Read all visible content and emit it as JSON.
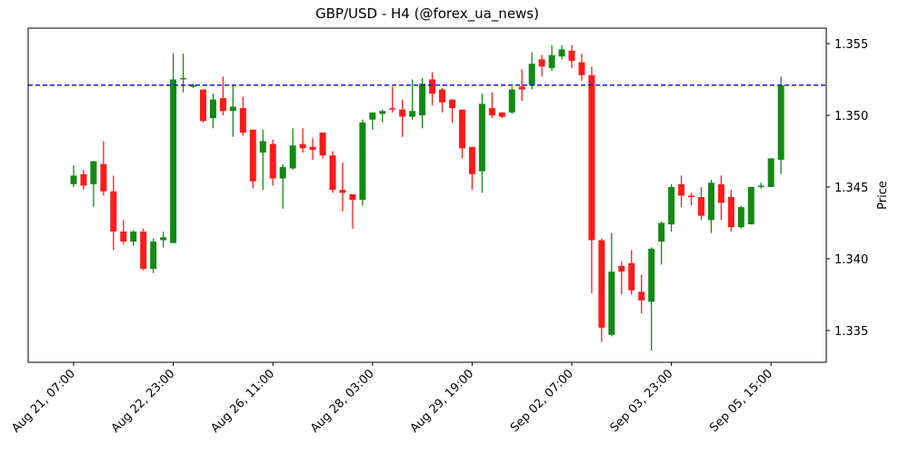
{
  "chart_data": {
    "type": "candlestick",
    "title": "GBP/USD - H4 (@forex_ua_news)",
    "xlabel": "",
    "ylabel": "Price",
    "ylim": [
      1.3326,
      1.3562
    ],
    "y_ticks": [
      "1.335",
      "1.340",
      "1.345",
      "1.350",
      "1.355"
    ],
    "x_ticks": [
      {
        "label": "Aug 21, 07:00",
        "index": 0
      },
      {
        "label": "Aug 22, 23:00",
        "index": 10
      },
      {
        "label": "Aug 26, 11:00",
        "index": 20
      },
      {
        "label": "Aug 28, 03:00",
        "index": 30
      },
      {
        "label": "Aug 29, 19:00",
        "index": 40
      },
      {
        "label": "Sep 02, 07:00",
        "index": 50
      },
      {
        "label": "Sep 03, 23:00",
        "index": 60
      },
      {
        "label": "Sep 05, 15:00",
        "index": 70
      }
    ],
    "grid": false,
    "y_axis_position": "right",
    "reference_line": {
      "value": 1.3521,
      "color": "#0000ff",
      "style": "dashed"
    },
    "colors": {
      "up": "#138a13",
      "down": "#ff1a1a"
    },
    "ohlc": [
      [
        1.3452,
        1.3465,
        1.345,
        1.3458
      ],
      [
        1.3459,
        1.3462,
        1.3448,
        1.3451
      ],
      [
        1.3452,
        1.3468,
        1.3436,
        1.3468
      ],
      [
        1.3466,
        1.3482,
        1.3444,
        1.3447
      ],
      [
        1.3447,
        1.3458,
        1.3406,
        1.3419
      ],
      [
        1.3419,
        1.3427,
        1.341,
        1.3412
      ],
      [
        1.3412,
        1.342,
        1.3409,
        1.3419
      ],
      [
        1.3419,
        1.3421,
        1.3392,
        1.3393
      ],
      [
        1.3393,
        1.3414,
        1.339,
        1.3412
      ],
      [
        1.3413,
        1.3419,
        1.3408,
        1.3415
      ],
      [
        1.3411,
        1.3543,
        1.3411,
        1.3525
      ],
      [
        1.3526,
        1.3543,
        1.3516,
        1.3526
      ],
      [
        1.352,
        1.3522,
        1.3519,
        1.3521
      ],
      [
        1.3518,
        1.3518,
        1.3495,
        1.3496
      ],
      [
        1.3498,
        1.3515,
        1.3491,
        1.3511
      ],
      [
        1.3512,
        1.3527,
        1.35,
        1.3503
      ],
      [
        1.3503,
        1.3521,
        1.3485,
        1.3506
      ],
      [
        1.3505,
        1.3513,
        1.3486,
        1.3488
      ],
      [
        1.349,
        1.349,
        1.3449,
        1.3454
      ],
      [
        1.3474,
        1.349,
        1.3448,
        1.3482
      ],
      [
        1.348,
        1.3483,
        1.3451,
        1.3456
      ],
      [
        1.3456,
        1.3466,
        1.3435,
        1.3464
      ],
      [
        1.3463,
        1.3491,
        1.3462,
        1.3479
      ],
      [
        1.348,
        1.3491,
        1.3474,
        1.3477
      ],
      [
        1.3478,
        1.3484,
        1.3469,
        1.3476
      ],
      [
        1.3488,
        1.3488,
        1.347,
        1.3472
      ],
      [
        1.3472,
        1.3475,
        1.3446,
        1.3448
      ],
      [
        1.3448,
        1.3467,
        1.3433,
        1.3446
      ],
      [
        1.3445,
        1.3445,
        1.3421,
        1.3441
      ],
      [
        1.3441,
        1.3497,
        1.3437,
        1.3495
      ],
      [
        1.3497,
        1.3502,
        1.349,
        1.3502
      ],
      [
        1.3501,
        1.3504,
        1.3495,
        1.3503
      ],
      [
        1.3505,
        1.352,
        1.3502,
        1.3504
      ],
      [
        1.3504,
        1.3511,
        1.3485,
        1.3499
      ],
      [
        1.3499,
        1.3525,
        1.3497,
        1.3503
      ],
      [
        1.35,
        1.3526,
        1.3491,
        1.3522
      ],
      [
        1.3525,
        1.353,
        1.3507,
        1.3515
      ],
      [
        1.3518,
        1.3519,
        1.3502,
        1.3509
      ],
      [
        1.3511,
        1.3511,
        1.3495,
        1.3505
      ],
      [
        1.3504,
        1.3504,
        1.347,
        1.3477
      ],
      [
        1.3478,
        1.3478,
        1.3448,
        1.3459
      ],
      [
        1.3461,
        1.3515,
        1.3446,
        1.3508
      ],
      [
        1.3505,
        1.3516,
        1.3498,
        1.35
      ],
      [
        1.3502,
        1.3502,
        1.3498,
        1.3499
      ],
      [
        1.3502,
        1.352,
        1.3501,
        1.3518
      ],
      [
        1.352,
        1.3532,
        1.351,
        1.3518
      ],
      [
        1.3521,
        1.3544,
        1.3518,
        1.3536
      ],
      [
        1.3539,
        1.3542,
        1.3527,
        1.3534
      ],
      [
        1.3533,
        1.3549,
        1.3531,
        1.3542
      ],
      [
        1.3541,
        1.3549,
        1.3539,
        1.3546
      ],
      [
        1.3545,
        1.3549,
        1.3533,
        1.3538
      ],
      [
        1.3537,
        1.3543,
        1.3524,
        1.3528
      ],
      [
        1.3528,
        1.3534,
        1.3376,
        1.3413
      ],
      [
        1.3413,
        1.3414,
        1.3342,
        1.3352
      ],
      [
        1.3347,
        1.3418,
        1.3346,
        1.3391
      ],
      [
        1.3395,
        1.3398,
        1.3375,
        1.3391
      ],
      [
        1.3397,
        1.3406,
        1.3375,
        1.3378
      ],
      [
        1.3377,
        1.3389,
        1.3362,
        1.3371
      ],
      [
        1.337,
        1.3408,
        1.3336,
        1.3407
      ],
      [
        1.3412,
        1.3426,
        1.3396,
        1.3425
      ],
      [
        1.3424,
        1.3452,
        1.3419,
        1.345
      ],
      [
        1.3452,
        1.3458,
        1.3436,
        1.3444
      ],
      [
        1.3444,
        1.3446,
        1.3437,
        1.3443
      ],
      [
        1.3443,
        1.345,
        1.3427,
        1.343
      ],
      [
        1.3427,
        1.3455,
        1.3418,
        1.3453
      ],
      [
        1.3452,
        1.3458,
        1.3427,
        1.3439
      ],
      [
        1.3443,
        1.3448,
        1.3419,
        1.3422
      ],
      [
        1.3422,
        1.3437,
        1.3421,
        1.3436
      ],
      [
        1.3424,
        1.345,
        1.3424,
        1.345
      ],
      [
        1.3451,
        1.3453,
        1.3449,
        1.3451
      ],
      [
        1.345,
        1.347,
        1.345,
        1.347
      ],
      [
        1.3469,
        1.3527,
        1.3459,
        1.3521
      ]
    ]
  }
}
